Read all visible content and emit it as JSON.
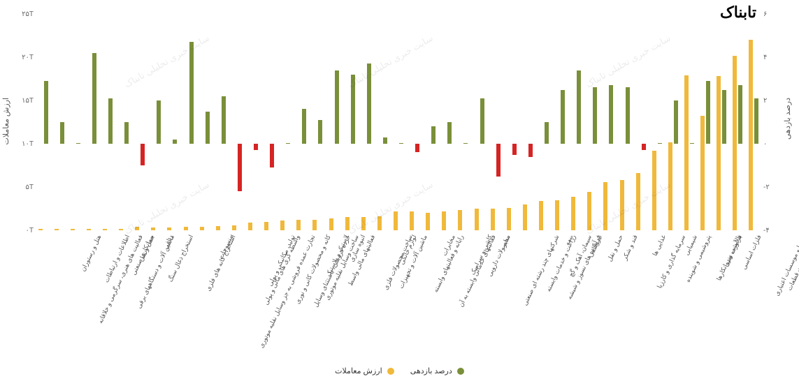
{
  "brand": "تابناک",
  "watermark_text": "سایت خبری تحلیلی تابناک",
  "legend": {
    "value_label": "ارزش معاملات",
    "return_label": "درصد بازدهی"
  },
  "y_left": {
    "label": "ارزش معاملات",
    "ticks": [
      "۰T",
      "۵T",
      "۱۰T",
      "۱۵T",
      "۲۰T",
      "۲۵T"
    ],
    "min": 0,
    "max": 25
  },
  "y_right": {
    "label": "درصد بازدهی",
    "ticks": [
      "۴-",
      "۲-",
      "۰",
      "۲",
      "۴",
      "۶"
    ],
    "min": -4,
    "max": 6
  },
  "colors": {
    "value_bar": "#f0b93b",
    "return_pos": "#7a8f3a",
    "return_neg": "#d62424",
    "background": "#ffffff",
    "text": "#555555"
  },
  "chart_type": "grouped-bar-dual-axis",
  "categories": [
    {
      "label": "خودرو و ساخت قطعات",
      "value": 22.0,
      "return": 2.1
    },
    {
      "label": "بانکها و موسسات اعتباری",
      "value": 20.2,
      "return": 2.7
    },
    {
      "label": "فلزات اساسی",
      "value": 17.8,
      "return": 2.5
    },
    {
      "label": "فرآورده نفتی",
      "value": 13.2,
      "return": 2.9
    },
    {
      "label": "پالایشی و روانکارها",
      "value": 17.9,
      "return": 0.0
    },
    {
      "label": "شیمیایی",
      "value": 10.2,
      "return": 2.0
    },
    {
      "label": "پتروشیمی و شوینده",
      "value": 9.2,
      "return": 0.0
    },
    {
      "label": "غذایی ها",
      "value": 6.6,
      "return": -0.3
    },
    {
      "label": "سرمایه گذاری و کارزیا",
      "value": 5.8,
      "return": 2.6
    },
    {
      "label": "قند و شکر",
      "value": 5.6,
      "return": 2.7
    },
    {
      "label": "حمل و نقل",
      "value": 4.4,
      "return": 2.6
    },
    {
      "label": "نیروگاهی",
      "value": 3.9,
      "return": 3.4
    },
    {
      "label": "بیمه",
      "value": 3.5,
      "return": 2.5
    },
    {
      "label": "سیمان، آهک و گچ",
      "value": 3.4,
      "return": 1.0
    },
    {
      "label": "فرآورده های نسوز و شیشه",
      "value": 3.0,
      "return": -0.6
    },
    {
      "label": "زراعت و خدمات وابسته",
      "value": 2.6,
      "return": -0.5
    },
    {
      "label": "سایر",
      "value": 2.5,
      "return": -1.5
    },
    {
      "label": "شرکتهای چند رشته ای صنعتی",
      "value": 2.5,
      "return": 2.1
    },
    {
      "label": "محصولات دارویی",
      "value": 2.3,
      "return": 0.0
    },
    {
      "label": "کاشی و سرامیک",
      "value": 2.2,
      "return": 1.0
    },
    {
      "label": "مخابرات",
      "value": 2.0,
      "return": 0.8
    },
    {
      "label": "فعالیتهای خدماتی وابسته به آن",
      "value": 2.2,
      "return": -0.4
    },
    {
      "label": "رایانه و فعالیتهای وابسته",
      "value": 2.2,
      "return": 0.0
    },
    {
      "label": "لوازم خانگی",
      "value": 1.6,
      "return": 0.3
    },
    {
      "label": "ماشین آلات و تجهیزات",
      "value": 1.5,
      "return": 3.7
    },
    {
      "label": "ساخت محصولات فلزی",
      "value": 1.5,
      "return": 3.2
    },
    {
      "label": "انبوه سازی",
      "value": 1.4,
      "return": 3.4
    },
    {
      "label": "فعالیتهای مالی واسط",
      "value": 1.2,
      "return": 1.1
    },
    {
      "label": "لاستیک و پلاستیک",
      "value": 1.2,
      "return": 1.6
    },
    {
      "label": "ساخت وسایل نقلیه موتوری",
      "value": 1.1,
      "return": 0.0
    },
    {
      "label": "خرده فروشی، باستثنای وسایل",
      "value": 1.0,
      "return": -1.1
    },
    {
      "label": "کانه و محصولات کانی و نوری",
      "value": 0.9,
      "return": -0.3
    },
    {
      "label": "تولید، مکانیکی و پولی",
      "value": 0.6,
      "return": -2.2
    },
    {
      "label": "واسطه گری های مالی و پولی",
      "value": 0.5,
      "return": 2.2
    },
    {
      "label": "منسوجات",
      "value": 0.4,
      "return": 1.5
    },
    {
      "label": "تجارت عمده فروشی به جز وسایل نقلیه موتوری",
      "value": 0.4,
      "return": 4.7
    },
    {
      "label": "استخراج کانه های فلزی",
      "value": 0.3,
      "return": 0.2
    },
    {
      "label": "دباغی",
      "value": 0.3,
      "return": 2.0
    },
    {
      "label": "استخراج ذغال سنگ",
      "value": 0.4,
      "return": -1.0
    },
    {
      "label": "حمل و نقل",
      "value": 0.2,
      "return": 1.0
    },
    {
      "label": "پیمانکاری صنعتی",
      "value": 0.2,
      "return": 2.1
    },
    {
      "label": "ماشین آلات و دستگاههای برقی",
      "value": 0.2,
      "return": 4.2
    },
    {
      "label": "اطلاعات و ارتباطات",
      "value": 0.2,
      "return": 0.0
    },
    {
      "label": "هتل و رستوران",
      "value": 0.2,
      "return": 1.0
    },
    {
      "label": "فعالیت های هنری، سرگرمی و خلاقانه",
      "value": 0.2,
      "return": 2.9
    }
  ]
}
